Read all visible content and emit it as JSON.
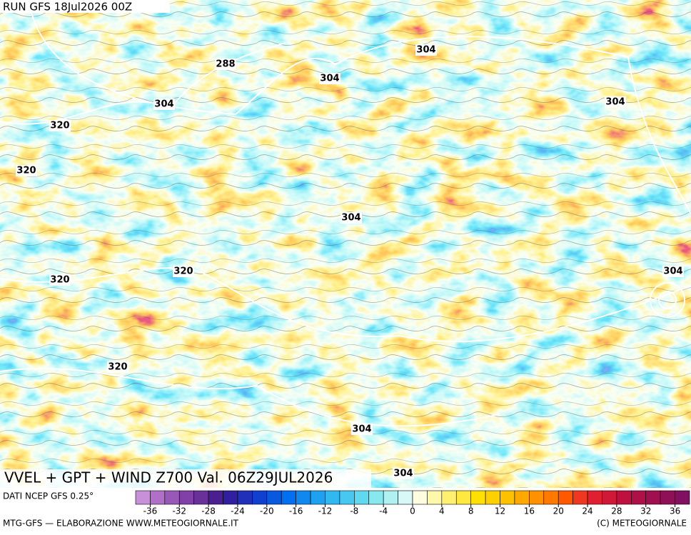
{
  "header": {
    "run": "RUN GFS 18Jul2026 00Z"
  },
  "map": {
    "title": "VVEL + GPT + WIND Z700 Val. 06Z29JUL2026",
    "contour_labels": [
      304,
      288,
      304,
      304,
      304,
      320,
      320,
      304,
      320,
      304,
      320,
      320,
      304,
      304
    ]
  },
  "legend": {
    "source": "DATI NCEP GFS 0.25°",
    "colorbar": {
      "bounds": [
        -38,
        38
      ],
      "ticks": [
        -36,
        -32,
        -28,
        -24,
        -20,
        -16,
        -12,
        -8,
        -4,
        0,
        4,
        8,
        12,
        16,
        20,
        24,
        28,
        32,
        36
      ],
      "colors": [
        "#c890d8",
        "#b070c8",
        "#9858b8",
        "#8040a8",
        "#683098",
        "#4a2090",
        "#3020a0",
        "#2030b8",
        "#1040d0",
        "#0858e0",
        "#0070f0",
        "#1088f0",
        "#20a0f0",
        "#30b8f0",
        "#48c8f0",
        "#60d8f0",
        "#88e8f0",
        "#b0f0f0",
        "#d8f8f8",
        "#fffce0",
        "#fff8a8",
        "#fff070",
        "#ffe840",
        "#ffe000",
        "#ffd000",
        "#ffc000",
        "#ffa800",
        "#ff9000",
        "#ff7800",
        "#ff5800",
        "#f03820",
        "#e02030",
        "#d01838",
        "#c01040",
        "#b01048",
        "#a01050",
        "#901058",
        "#801060"
      ]
    }
  },
  "footer": {
    "left": "MTG-GFS — ELABORAZIONE WWW.METEOGIORNALE.IT",
    "right": "(C) METEOGIORNALE"
  }
}
